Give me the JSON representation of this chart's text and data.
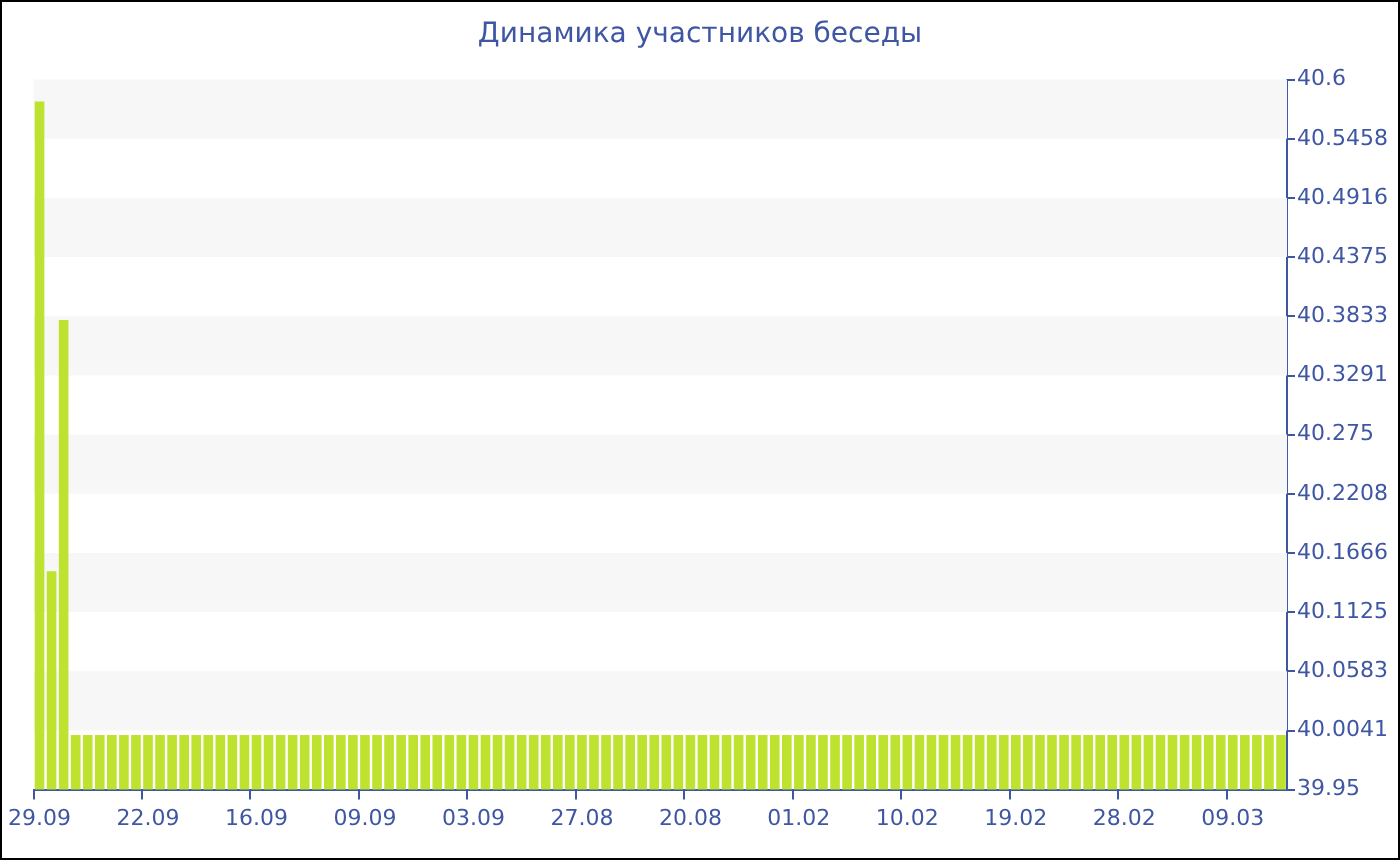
{
  "chart_data": {
    "type": "bar",
    "title": "Динамика участников беседы",
    "categories": [
      "29.09",
      null,
      null,
      null,
      null,
      null,
      null,
      null,
      null,
      "22.09",
      null,
      null,
      null,
      null,
      null,
      null,
      null,
      null,
      "16.09",
      null,
      null,
      null,
      null,
      null,
      null,
      null,
      null,
      "09.09",
      null,
      null,
      null,
      null,
      null,
      null,
      null,
      null,
      "03.09",
      null,
      null,
      null,
      null,
      null,
      null,
      null,
      null,
      "27.08",
      null,
      null,
      null,
      null,
      null,
      null,
      null,
      null,
      "20.08",
      null,
      null,
      null,
      null,
      null,
      null,
      null,
      null,
      "01.02",
      null,
      null,
      null,
      null,
      null,
      null,
      null,
      null,
      "10.02",
      null,
      null,
      null,
      null,
      null,
      null,
      null,
      null,
      "19.02",
      null,
      null,
      null,
      null,
      null,
      null,
      null,
      null,
      "28.02",
      null,
      null,
      null,
      null,
      null,
      null,
      null,
      null,
      "09.03",
      null,
      null,
      null,
      null
    ],
    "values": [
      40.58,
      40.15,
      40.38,
      40,
      40,
      40,
      40,
      40,
      40,
      40,
      40,
      40,
      40,
      40,
      40,
      40,
      40,
      40,
      40,
      40,
      40,
      40,
      40,
      40,
      40,
      40,
      40,
      40,
      40,
      40,
      40,
      40,
      40,
      40,
      40,
      40,
      40,
      40,
      40,
      40,
      40,
      40,
      40,
      40,
      40,
      40,
      40,
      40,
      40,
      40,
      40,
      40,
      40,
      40,
      40,
      40,
      40,
      40,
      40,
      40,
      40,
      40,
      40,
      40,
      40,
      40,
      40,
      40,
      40,
      40,
      40,
      40,
      40,
      40,
      40,
      40,
      40,
      40,
      40,
      40,
      40,
      40,
      40,
      40,
      40,
      40,
      40,
      40,
      40,
      40,
      40,
      40,
      40,
      40,
      40,
      40,
      40,
      40,
      40,
      40,
      40,
      40,
      40,
      40
    ],
    "color": "#bde22f",
    "ylim": [
      39.95,
      40.6
    ],
    "yticks": [
      39.95,
      40.0041,
      40.0583,
      40.1125,
      40.1666,
      40.2208,
      40.275,
      40.3291,
      40.3833,
      40.4375,
      40.4916,
      40.5458,
      40.6
    ]
  }
}
